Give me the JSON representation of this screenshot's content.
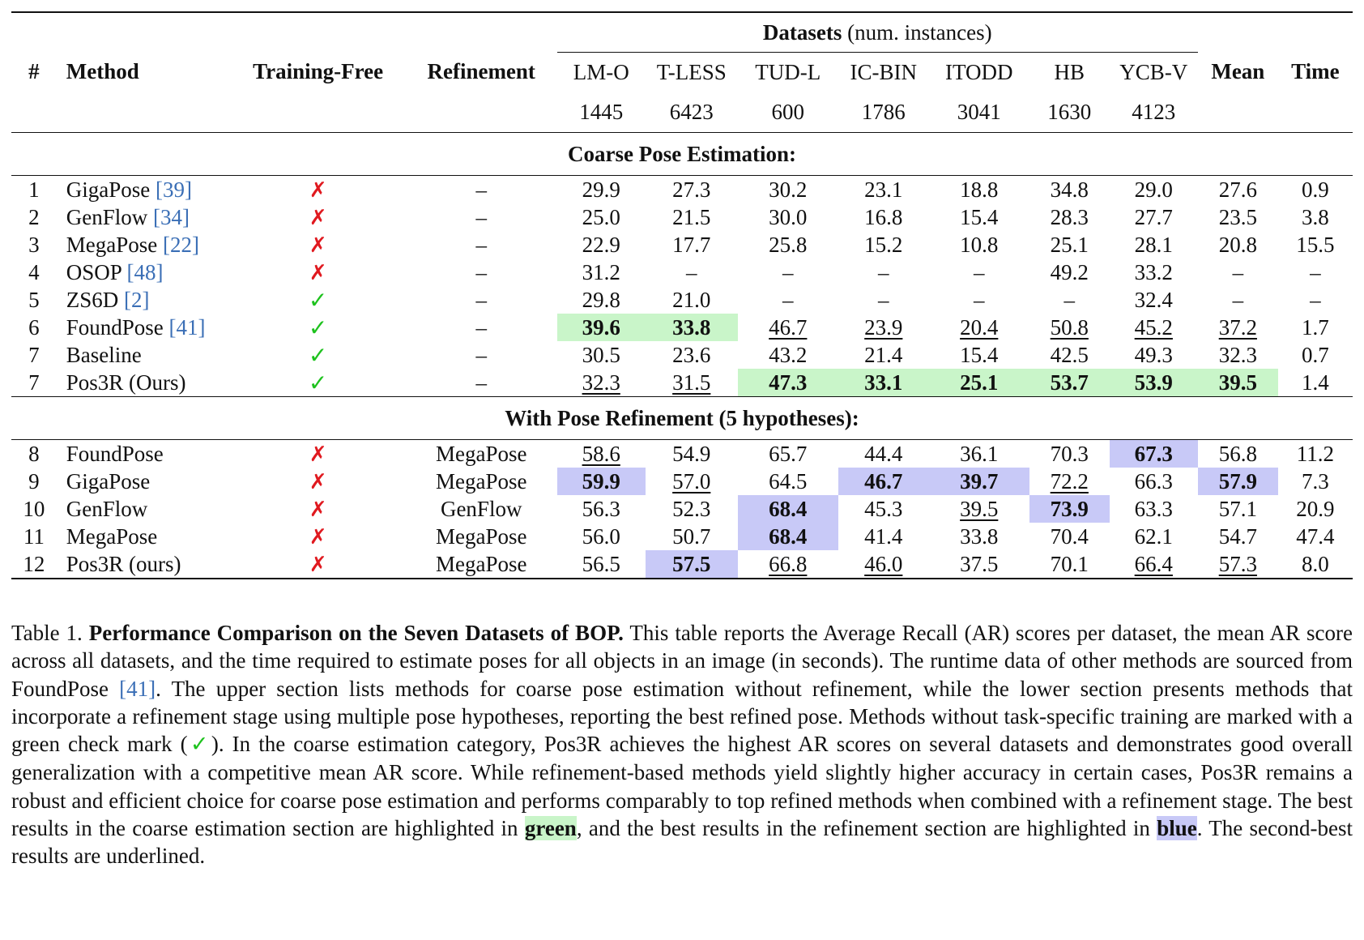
{
  "table": {
    "header": {
      "num": "#",
      "method": "Method",
      "training_free": "Training-Free",
      "refinement": "Refinement",
      "datasets_label": "Datasets",
      "datasets_note": "(num. instances)",
      "datasets": [
        "LM-O",
        "T-LESS",
        "TUD-L",
        "IC-BIN",
        "ITODD",
        "HB",
        "YCB-V"
      ],
      "instances": [
        "1445",
        "6423",
        "600",
        "1786",
        "3041",
        "1630",
        "4123"
      ],
      "mean": "Mean",
      "time": "Time"
    },
    "section_coarse": "Coarse Pose Estimation:",
    "section_refine": "With Pose Refinement (5 hypotheses):",
    "coarse_rows": [
      {
        "num": "1",
        "method": "GigaPose ",
        "cite": "[39]",
        "tf": "✗",
        "ref": "–",
        "vals": [
          "29.9",
          "27.3",
          "30.2",
          "23.1",
          "18.8",
          "34.8",
          "29.0",
          "27.6",
          "0.9"
        ]
      },
      {
        "num": "2",
        "method": "GenFlow ",
        "cite": "[34]",
        "tf": "✗",
        "ref": "–",
        "vals": [
          "25.0",
          "21.5",
          "30.0",
          "16.8",
          "15.4",
          "28.3",
          "27.7",
          "23.5",
          "3.8"
        ]
      },
      {
        "num": "3",
        "method": "MegaPose ",
        "cite": "[22]",
        "tf": "✗",
        "ref": "–",
        "vals": [
          "22.9",
          "17.7",
          "25.8",
          "15.2",
          "10.8",
          "25.1",
          "28.1",
          "20.8",
          "15.5"
        ]
      },
      {
        "num": "4",
        "method": "OSOP ",
        "cite": "[48]",
        "tf": "✗",
        "ref": "–",
        "vals": [
          "31.2",
          "–",
          "–",
          "–",
          "–",
          "49.2",
          "33.2",
          "–",
          "–"
        ]
      },
      {
        "num": "5",
        "method": "ZS6D ",
        "cite": "[2]",
        "tf": "✓",
        "ref": "–",
        "vals": [
          "29.8",
          "21.0",
          "–",
          "–",
          "–",
          "–",
          "32.4",
          "–",
          "–"
        ]
      },
      {
        "num": "6",
        "method": "FoundPose ",
        "cite": "[41]",
        "tf": "✓",
        "ref": "–",
        "vals": [
          "39.6",
          "33.8",
          "46.7",
          "23.9",
          "20.4",
          "50.8",
          "45.2",
          "37.2",
          "1.7"
        ]
      },
      {
        "num": "7",
        "method": "Baseline",
        "cite": "",
        "tf": "✓",
        "ref": "–",
        "vals": [
          "30.5",
          "23.6",
          "43.2",
          "21.4",
          "15.4",
          "42.5",
          "49.3",
          "32.3",
          "0.7"
        ]
      },
      {
        "num": "7",
        "method": "Pos3R (Ours)",
        "cite": "",
        "tf": "✓",
        "ref": "–",
        "vals": [
          "32.3",
          "31.5",
          "47.3",
          "33.1",
          "25.1",
          "53.7",
          "53.9",
          "39.5",
          "1.4"
        ]
      }
    ],
    "refine_rows": [
      {
        "num": "8",
        "method": "FoundPose",
        "cite": "",
        "tf": "✗",
        "ref": "MegaPose",
        "vals": [
          "58.6",
          "54.9",
          "65.7",
          "44.4",
          "36.1",
          "70.3",
          "67.3",
          "56.8",
          "11.2"
        ]
      },
      {
        "num": "9",
        "method": "GigaPose",
        "cite": "",
        "tf": "✗",
        "ref": "MegaPose",
        "vals": [
          "59.9",
          "57.0",
          "64.5",
          "46.7",
          "39.7",
          "72.2",
          "66.3",
          "57.9",
          "7.3"
        ]
      },
      {
        "num": "10",
        "method": "GenFlow",
        "cite": "",
        "tf": "✗",
        "ref": "GenFlow",
        "vals": [
          "56.3",
          "52.3",
          "68.4",
          "45.3",
          "39.5",
          "73.9",
          "63.3",
          "57.1",
          "20.9"
        ]
      },
      {
        "num": "11",
        "method": "MegaPose",
        "cite": "",
        "tf": "✗",
        "ref": "MegaPose",
        "vals": [
          "56.0",
          "50.7",
          "68.4",
          "41.4",
          "33.8",
          "70.4",
          "62.1",
          "54.7",
          "47.4"
        ]
      },
      {
        "num": "12",
        "method": "Pos3R (ours)",
        "cite": "",
        "tf": "✗",
        "ref": "MegaPose",
        "vals": [
          "56.5",
          "57.5",
          "66.8",
          "46.0",
          "37.5",
          "70.1",
          "66.4",
          "57.3",
          "8.0"
        ]
      }
    ],
    "colors": {
      "green_highlight": "#c9f5c9",
      "blue_highlight": "#c8c9f7",
      "cross": "#e0191f",
      "check": "#1ec21e",
      "cite": "#3b6fb6"
    }
  },
  "caption": {
    "label": "Table 1.",
    "title": "Performance Comparison on the Seven Datasets of BOP.",
    "p1": "This table reports the Average Recall (AR) scores per dataset, the mean AR score across all datasets, and the time required to estimate poses for all objects in an image (in seconds). The runtime data of other methods are sourced from FoundPose ",
    "p1_cite": "[41]",
    "p2": ". The upper section lists methods for coarse pose estimation without refinement, while the lower section presents methods that incorporate a refinement stage using multiple pose hypotheses, reporting the best refined pose. Methods without task-specific training are marked with a green check mark (",
    "p2_mark": "✓",
    "p3": "). In the coarse estimation category, Pos3R achieves the highest AR scores on several datasets and demonstrates good overall generalization with a competitive mean AR score. While refinement-based methods yield slightly higher accuracy in certain cases, Pos3R remains a robust and efficient choice for coarse pose estimation and performs comparably to top refined methods when combined with a refinement stage. The best results in the coarse estimation section are highlighted in ",
    "green_word": "green",
    "p4": ", and the best results in the refinement section are highlighted in ",
    "blue_word": "blue",
    "p5": ". The second-best results are underlined."
  }
}
